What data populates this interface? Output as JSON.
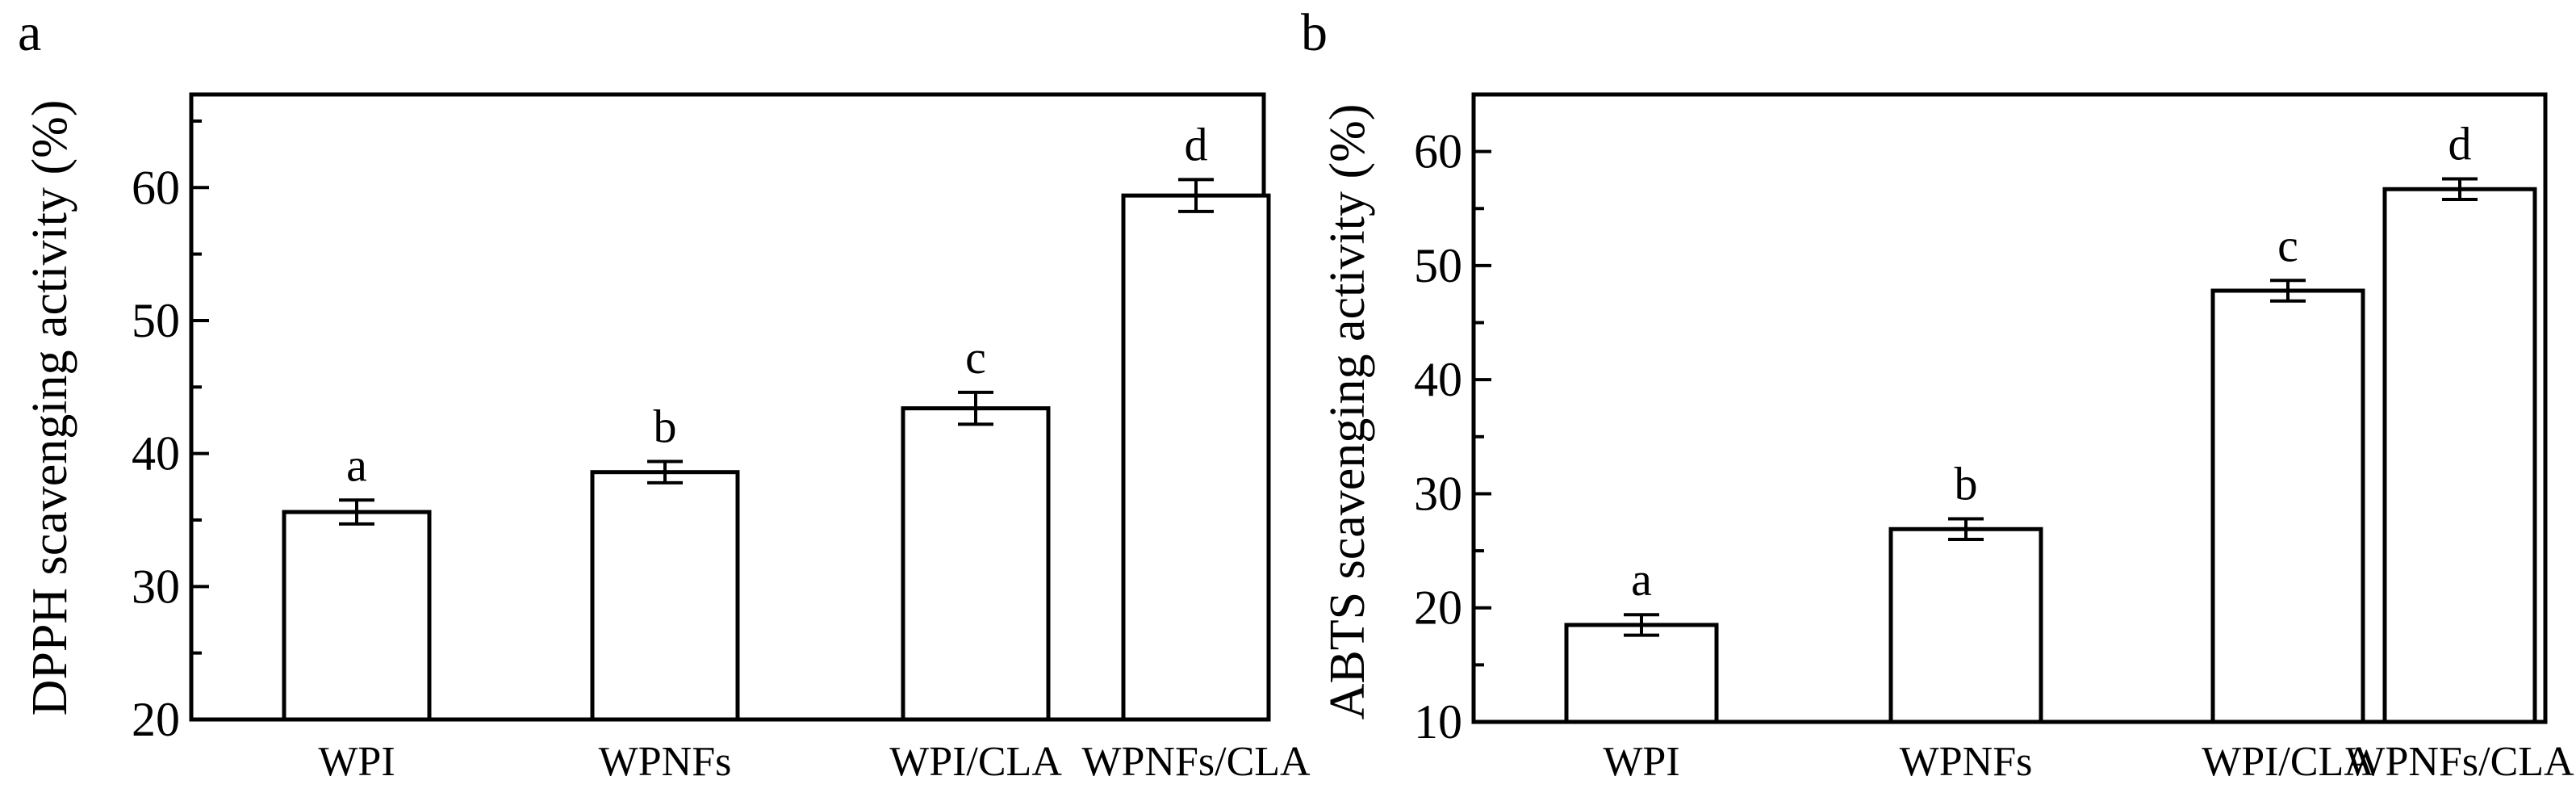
{
  "chart_data": [
    {
      "panel_label": "a",
      "type": "bar",
      "categories": [
        "WPI",
        "WPNFs",
        "WPI/CLA",
        "WPNFs/CLA"
      ],
      "values": [
        35.6,
        38.6,
        43.4,
        59.4
      ],
      "errors": [
        0.9,
        0.8,
        1.2,
        1.2
      ],
      "significance_letters": [
        "a",
        "b",
        "c",
        "d"
      ],
      "title": "",
      "xlabel": "",
      "ylabel": "DPPH scavenging activity (%)",
      "ylim": [
        20,
        67
      ],
      "yticks": [
        20,
        30,
        40,
        50,
        60
      ],
      "ytick_labels": [
        "20",
        "30",
        "40",
        "50",
        "60"
      ],
      "minor_ytick_step": 5,
      "grid": false,
      "legend": "none",
      "bar_fill": "#ffffff",
      "stroke_color": "#000000"
    },
    {
      "panel_label": "b",
      "type": "bar",
      "categories": [
        "WPI",
        "WPNFs",
        "WPI/CLA",
        "WPNFs/CLA"
      ],
      "values": [
        18.5,
        26.9,
        47.8,
        56.7
      ],
      "errors": [
        0.9,
        0.9,
        0.9,
        0.9
      ],
      "significance_letters": [
        "a",
        "b",
        "c",
        "d"
      ],
      "title": "",
      "xlabel": "",
      "ylabel": "ABTS scavenging activity (%)",
      "ylim": [
        10,
        65
      ],
      "yticks": [
        10,
        20,
        30,
        40,
        50,
        60
      ],
      "ytick_labels": [
        "10",
        "20",
        "30",
        "40",
        "50",
        "60"
      ],
      "minor_ytick_step": 5,
      "grid": false,
      "legend": "none",
      "bar_fill": "#ffffff",
      "stroke_color": "#000000"
    }
  ]
}
